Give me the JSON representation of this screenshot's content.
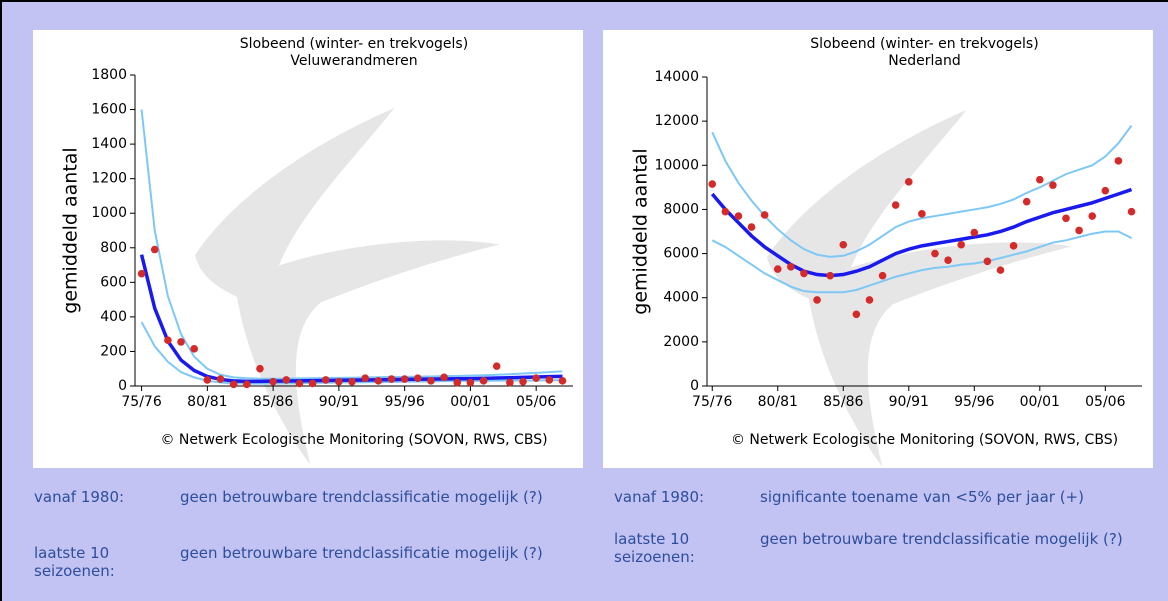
{
  "chart_data": [
    {
      "type": "scatter",
      "title": "Slobeend (winter- en trekvogels)",
      "subtitle": "Veluwerandmeren",
      "y_label": "gemiddeld aantal",
      "note": "© Netwerk Ecologische Monitoring (SOVON, RWS, CBS)",
      "xlim": [
        1974.5,
        2007.8
      ],
      "ylim": [
        0,
        1800
      ],
      "xticks": [
        {
          "value": 1975,
          "label": "75/76"
        },
        {
          "value": 1980,
          "label": "80/81"
        },
        {
          "value": 1985,
          "label": "85/86"
        },
        {
          "value": 1990,
          "label": "90/91"
        },
        {
          "value": 1995,
          "label": "95/96"
        },
        {
          "value": 2000,
          "label": "00/01"
        },
        {
          "value": 2005,
          "label": "05/06"
        }
      ],
      "yticks": [
        0,
        200,
        400,
        600,
        800,
        1000,
        1200,
        1400,
        1600,
        1800
      ],
      "x": [
        1975,
        1976,
        1977,
        1978,
        1979,
        1980,
        1981,
        1982,
        1983,
        1984,
        1985,
        1986,
        1987,
        1988,
        1989,
        1990,
        1991,
        1992,
        1993,
        1994,
        1995,
        1996,
        1997,
        1998,
        1999,
        2000,
        2001,
        2002,
        2003,
        2004,
        2005,
        2006,
        2007
      ],
      "series": [
        {
          "mark": "line",
          "color": "#7ec8f5",
          "width": 2,
          "values": [
            1600,
            900,
            520,
            300,
            170,
            100,
            65,
            50,
            45,
            42,
            42,
            43,
            44,
            45,
            46,
            47,
            48,
            50,
            51,
            52,
            53,
            54,
            55,
            57,
            58,
            60,
            62,
            65,
            68,
            72,
            76,
            80,
            85
          ]
        },
        {
          "mark": "line",
          "color": "#7ec8f5",
          "width": 2,
          "values": [
            370,
            230,
            140,
            80,
            50,
            30,
            20,
            15,
            14,
            14,
            15,
            16,
            17,
            18,
            19,
            20,
            21,
            22,
            23,
            24,
            25,
            26,
            27,
            28,
            29,
            30,
            30,
            31,
            31,
            32,
            32,
            33,
            33
          ]
        },
        {
          "mark": "line",
          "color": "#1a1aee",
          "width": 3.5,
          "values": [
            760,
            450,
            260,
            150,
            90,
            55,
            38,
            30,
            27,
            27,
            28,
            29,
            30,
            31,
            32,
            33,
            34,
            35,
            36,
            37,
            38,
            39,
            40,
            41,
            42,
            43,
            44,
            46,
            48,
            50,
            52,
            54,
            56
          ]
        },
        {
          "mark": "point",
          "color": "#d42a2a",
          "values": [
            650,
            790,
            265,
            255,
            215,
            35,
            40,
            10,
            10,
            100,
            25,
            35,
            15,
            15,
            35,
            25,
            25,
            45,
            30,
            40,
            40,
            45,
            30,
            50,
            20,
            20,
            30,
            115,
            20,
            25,
            45,
            35,
            30
          ]
        }
      ]
    },
    {
      "type": "scatter",
      "title": "Slobeend (winter- en trekvogels)",
      "subtitle": "Nederland",
      "y_label": "gemiddeld aantal",
      "note": "© Netwerk Ecologische Monitoring (SOVON, RWS, CBS)",
      "xlim": [
        1974.6,
        2007.8
      ],
      "ylim": [
        0,
        14000
      ],
      "xticks": [
        {
          "value": 1975,
          "label": "75/76"
        },
        {
          "value": 1980,
          "label": "80/81"
        },
        {
          "value": 1985,
          "label": "85/86"
        },
        {
          "value": 1990,
          "label": "90/91"
        },
        {
          "value": 1995,
          "label": "95/96"
        },
        {
          "value": 2000,
          "label": "00/01"
        },
        {
          "value": 2005,
          "label": "05/06"
        }
      ],
      "yticks": [
        0,
        2000,
        4000,
        6000,
        8000,
        10000,
        12000,
        14000
      ],
      "x": [
        1975,
        1976,
        1977,
        1978,
        1979,
        1980,
        1981,
        1982,
        1983,
        1984,
        1985,
        1986,
        1987,
        1988,
        1989,
        1990,
        1991,
        1992,
        1993,
        1994,
        1995,
        1996,
        1997,
        1998,
        1999,
        2000,
        2001,
        2002,
        2003,
        2004,
        2005,
        2006,
        2007
      ],
      "series": [
        {
          "mark": "line",
          "color": "#7ec8f5",
          "width": 2,
          "values": [
            11500,
            10200,
            9200,
            8400,
            7700,
            7100,
            6600,
            6200,
            5950,
            5850,
            5900,
            6100,
            6400,
            6800,
            7200,
            7450,
            7600,
            7700,
            7800,
            7900,
            8000,
            8100,
            8250,
            8450,
            8750,
            9000,
            9300,
            9600,
            9800,
            10000,
            10400,
            11000,
            11800
          ]
        },
        {
          "mark": "line",
          "color": "#7ec8f5",
          "width": 2,
          "values": [
            6600,
            6300,
            5900,
            5500,
            5100,
            4800,
            4500,
            4300,
            4250,
            4250,
            4250,
            4350,
            4550,
            4750,
            4950,
            5100,
            5250,
            5350,
            5400,
            5500,
            5550,
            5650,
            5800,
            5950,
            6100,
            6300,
            6500,
            6600,
            6750,
            6900,
            7000,
            7000,
            6700
          ]
        },
        {
          "mark": "line",
          "color": "#1a1aee",
          "width": 3.5,
          "values": [
            8700,
            8000,
            7400,
            6800,
            6300,
            5900,
            5500,
            5200,
            5050,
            5000,
            5050,
            5200,
            5400,
            5700,
            6000,
            6200,
            6350,
            6450,
            6550,
            6650,
            6750,
            6850,
            7000,
            7200,
            7450,
            7650,
            7850,
            8000,
            8150,
            8300,
            8500,
            8700,
            8900
          ]
        },
        {
          "mark": "point",
          "color": "#d42a2a",
          "values": [
            9150,
            7900,
            7700,
            7200,
            7750,
            5300,
            5400,
            5100,
            3900,
            5000,
            6400,
            3250,
            3900,
            5000,
            8200,
            9250,
            7800,
            6000,
            5700,
            6400,
            6950,
            5650,
            5250,
            6350,
            8350,
            9350,
            9100,
            7600,
            7050,
            7700,
            8850,
            10200,
            7900
          ]
        }
      ]
    }
  ],
  "trends": [
    [
      [
        "vanaf 1980:",
        "geen betrouwbare trendclassificatie mogelijk (?)"
      ],
      [
        "laatste 10 seizoenen:",
        "geen betrouwbare trendclassificatie mogelijk (?)"
      ]
    ],
    [
      [
        "vanaf 1980:",
        "significante toename van <5% per jaar (+)"
      ],
      [
        "laatste 10 seizoenen:",
        "geen betrouwbare trendclassificatie mogelijk (?)"
      ]
    ]
  ]
}
